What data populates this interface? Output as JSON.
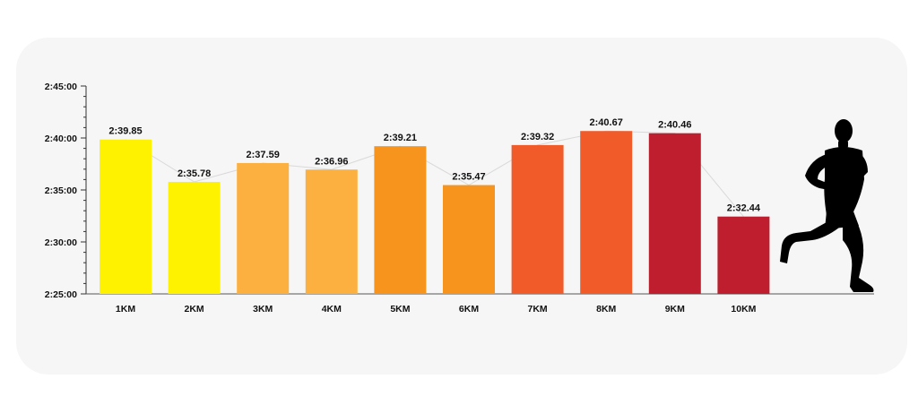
{
  "chart_data": {
    "type": "bar",
    "categories": [
      "1KM",
      "2KM",
      "3KM",
      "4KM",
      "5KM",
      "6KM",
      "7KM",
      "8KM",
      "9KM",
      "10KM"
    ],
    "values": [
      159.85,
      155.78,
      157.59,
      156.96,
      159.21,
      155.47,
      159.32,
      160.67,
      160.46,
      152.44
    ],
    "value_labels": [
      "2:39.85",
      "2:35.78",
      "2:37.59",
      "2:36.96",
      "2:39.21",
      "2:35.47",
      "2:39.32",
      "2:40.67",
      "2:40.46",
      "2:32.44"
    ],
    "bar_colors": [
      "#fff200",
      "#fff200",
      "#fbb040",
      "#fbb040",
      "#f7941d",
      "#f7941d",
      "#f15a29",
      "#f15a29",
      "#be1e2d",
      "#be1e2d"
    ],
    "connector_color": "#d9d9d9",
    "y_unit": "seconds",
    "ylim": [
      145,
      165
    ],
    "y_ticks": [
      145,
      150,
      155,
      160,
      165
    ],
    "y_tick_labels": [
      "2:25:00",
      "2:30:00",
      "2:35:00",
      "2:40:00",
      "2:45:00"
    ],
    "y_minor_step": 1,
    "title": "",
    "xlabel": "",
    "ylabel": "",
    "grid": false,
    "legend": "none"
  },
  "decoration": {
    "icon": "runner-silhouette-icon"
  }
}
